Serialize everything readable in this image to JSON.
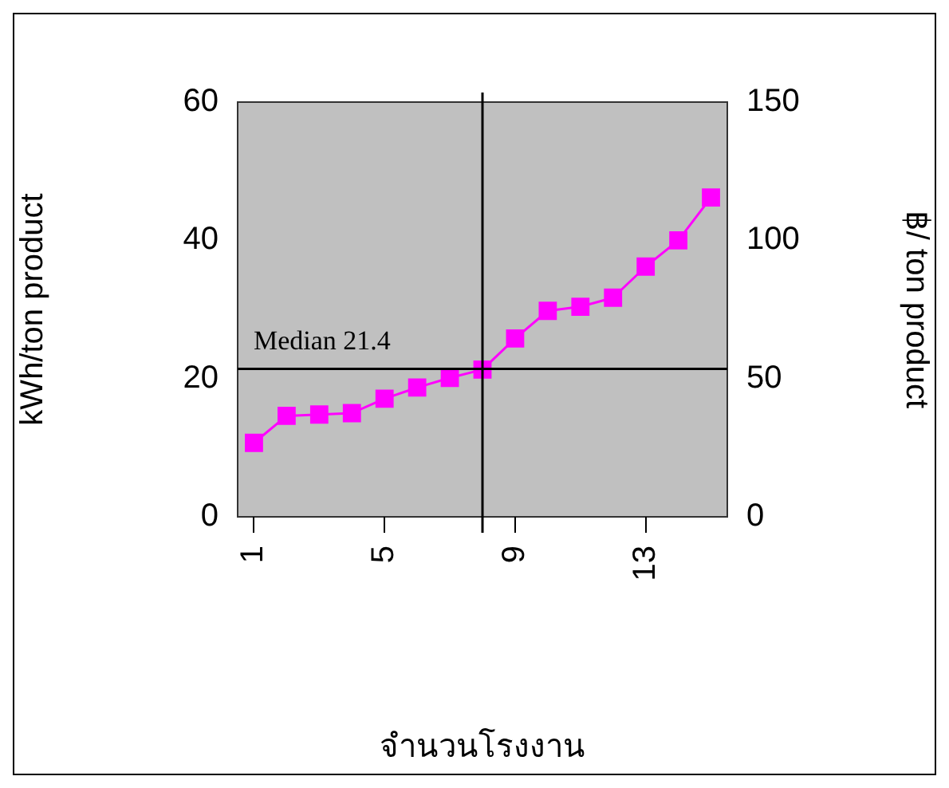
{
  "chart_data": {
    "type": "line",
    "xlabel": "จำนวนโรงงาน",
    "ylabel": "kWh/ton product",
    "y2label": "฿/ ton product",
    "x": [
      1,
      2,
      3,
      4,
      5,
      6,
      7,
      8,
      9,
      10,
      11,
      12,
      13,
      14,
      15
    ],
    "series": [
      {
        "color": "#ff00ff",
        "values": [
          10.7,
          14.6,
          14.8,
          15.0,
          17.1,
          18.7,
          20.1,
          21.3,
          25.8,
          29.8,
          30.4,
          31.7,
          36.2,
          40.0,
          46.2
        ]
      }
    ],
    "xlim": [
      0.5,
      15.5
    ],
    "xticks": [
      1,
      5,
      9,
      13
    ],
    "ylim": [
      0,
      60
    ],
    "yticks": [
      0,
      20,
      40,
      60
    ],
    "y2lim": [
      0,
      150
    ],
    "y2ticks": [
      0,
      50,
      100,
      150
    ],
    "ref_lines": [
      {
        "axis": "y",
        "value": 21.4,
        "label": "Median 21.4",
        "color": "#000000"
      },
      {
        "axis": "x",
        "value": 8,
        "color": "#000000"
      }
    ],
    "marker": "square",
    "line_style": "solid",
    "grid": false,
    "legend": false
  }
}
